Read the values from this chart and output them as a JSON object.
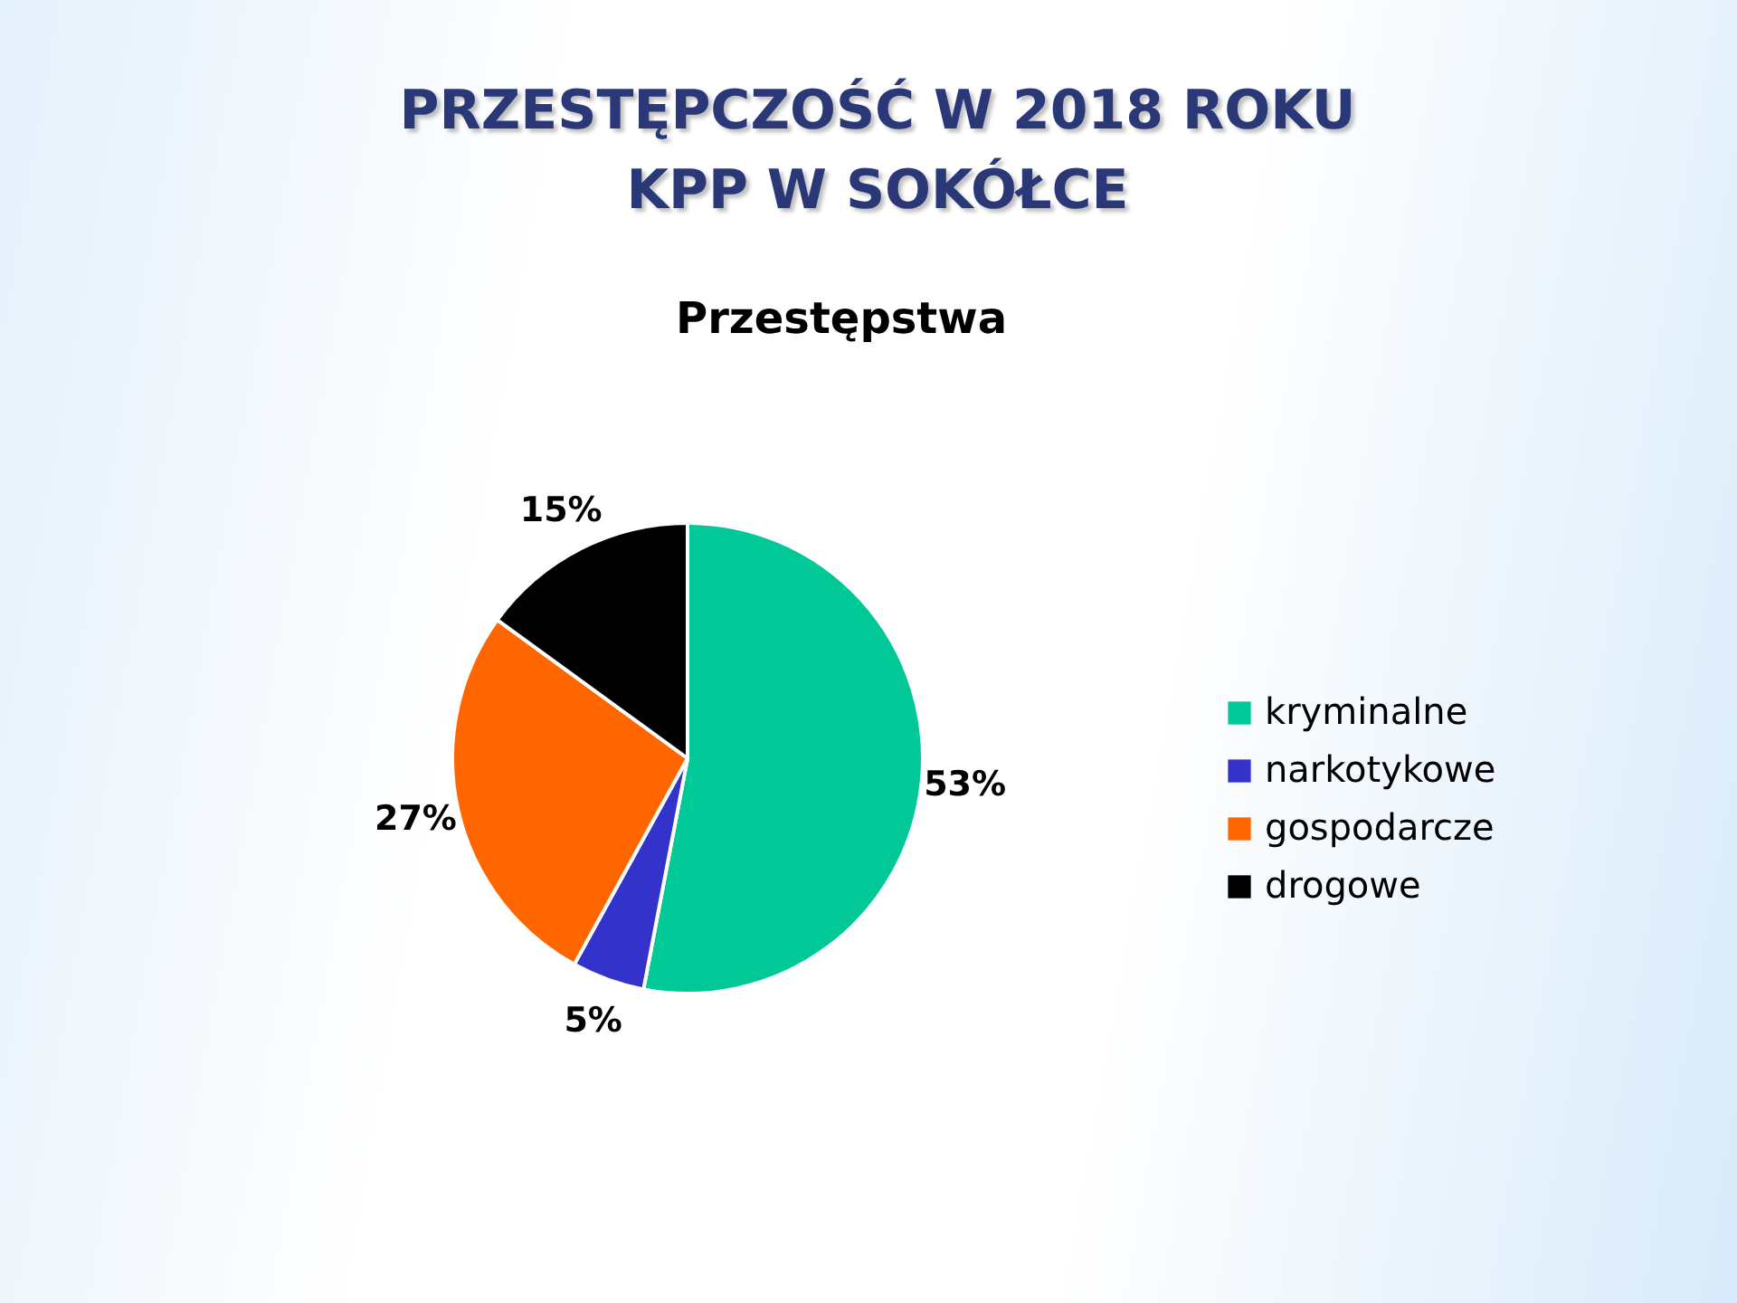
{
  "chart_data": {
    "type": "pie",
    "title": "PRZESTĘPCZOŚĆ W 2018 ROKU KPP W SOKÓŁCE",
    "subtitle": "Przestępstwa",
    "categories": [
      "kryminalne",
      "narkotykowe",
      "gospodarcze",
      "drogowe"
    ],
    "values": [
      53,
      5,
      27,
      15
    ],
    "value_labels": [
      "53%",
      "5%",
      "27%",
      "15%"
    ],
    "colors": [
      "#00c896",
      "#3333cc",
      "#ff6600",
      "#000000"
    ],
    "legend": "right"
  }
}
